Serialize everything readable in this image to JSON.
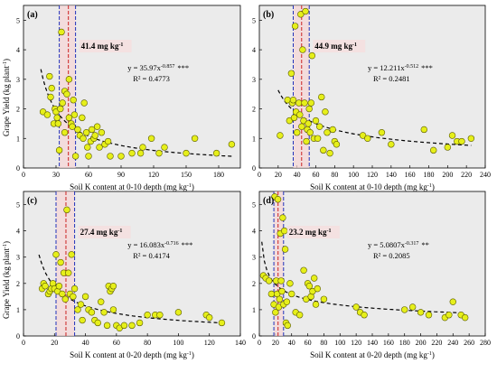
{
  "figure": {
    "y_axis_label": "Grape Yield (kg plant",
    "y_axis_label_sup": "-1",
    "y_axis_label_tail": ")"
  },
  "chart_data": [
    {
      "type": "scatter",
      "panel_label": "(a)",
      "xlabel": "Soil K content at 0-10 depth (mg kg",
      "xlabel_sup": "-1",
      "xlabel_tail": ")",
      "ylabel": "Grape Yield (kg plant-1)",
      "xlim": [
        0,
        200
      ],
      "ylim": [
        0,
        5.5
      ],
      "xticks": [
        0,
        30,
        60,
        90,
        120,
        150,
        180
      ],
      "yticks": [
        0,
        1,
        2,
        3,
        4,
        5
      ],
      "threshold_label": "41.4 mg kg",
      "threshold_label_sup": "-1",
      "threshold": 41.4,
      "ci_lines": [
        33,
        48
      ],
      "equation_text": "y = 35.97x",
      "equation_sup": "-0.857",
      "equation_sig": "***",
      "r2_text": "R² = 0.4773",
      "fit": {
        "a": 35.97,
        "b": -0.857
      },
      "points": [
        [
          18,
          1.9
        ],
        [
          22,
          1.8
        ],
        [
          24,
          3.1
        ],
        [
          25,
          2.4
        ],
        [
          26,
          2.7
        ],
        [
          28,
          1.5
        ],
        [
          29,
          2.0
        ],
        [
          30,
          1.9
        ],
        [
          31,
          1.7
        ],
        [
          32,
          1.5
        ],
        [
          33,
          0.6
        ],
        [
          34,
          2.0
        ],
        [
          35,
          4.6
        ],
        [
          36,
          2.2
        ],
        [
          38,
          1.2
        ],
        [
          38,
          2.6
        ],
        [
          40,
          2.5
        ],
        [
          42,
          3.0
        ],
        [
          42,
          1.7
        ],
        [
          44,
          1.5
        ],
        [
          45,
          1.4
        ],
        [
          46,
          2.3
        ],
        [
          47,
          1.8
        ],
        [
          48,
          0.4
        ],
        [
          50,
          1.3
        ],
        [
          52,
          1.1
        ],
        [
          54,
          1.7
        ],
        [
          55,
          1.0
        ],
        [
          56,
          2.2
        ],
        [
          58,
          1.2
        ],
        [
          59,
          0.7
        ],
        [
          60,
          0.4
        ],
        [
          62,
          0.9
        ],
        [
          63,
          1.3
        ],
        [
          65,
          1.0
        ],
        [
          66,
          1.1
        ],
        [
          68,
          1.4
        ],
        [
          70,
          0.7
        ],
        [
          72,
          1.2
        ],
        [
          75,
          0.8
        ],
        [
          78,
          0.9
        ],
        [
          80,
          0.4
        ],
        [
          90,
          0.4
        ],
        [
          100,
          0.5
        ],
        [
          108,
          0.5
        ],
        [
          110,
          0.7
        ],
        [
          118,
          1.0
        ],
        [
          125,
          0.5
        ],
        [
          130,
          0.7
        ],
        [
          150,
          0.5
        ],
        [
          158,
          1.0
        ],
        [
          178,
          0.5
        ],
        [
          192,
          0.8
        ]
      ]
    },
    {
      "type": "scatter",
      "panel_label": "(b)",
      "xlabel": "Soil K content at 0-10 depth (mg kg",
      "xlabel_sup": "-1",
      "xlabel_tail": ")",
      "ylabel": "",
      "xlim": [
        0,
        240
      ],
      "ylim": [
        0,
        5.5
      ],
      "xticks": [
        0,
        20,
        40,
        60,
        80,
        100,
        120,
        140,
        160,
        180,
        200,
        220,
        240
      ],
      "yticks": [
        0,
        1,
        2,
        3,
        4,
        5
      ],
      "threshold_label": "44.9 mg kg",
      "threshold_label_sup": "-1",
      "threshold": 44.9,
      "ci_lines": [
        36,
        53
      ],
      "equation_text": "y = 12.211x",
      "equation_sup": "-0.512",
      "equation_sig": "***",
      "r2_text": "R² = 0.2481",
      "fit": {
        "a": 12.211,
        "b": -0.512
      },
      "points": [
        [
          22,
          1.1
        ],
        [
          30,
          2.3
        ],
        [
          32,
          1.6
        ],
        [
          34,
          3.2
        ],
        [
          35,
          2.2
        ],
        [
          36,
          2.3
        ],
        [
          37,
          1.7
        ],
        [
          38,
          4.8
        ],
        [
          39,
          1.9
        ],
        [
          40,
          1.2
        ],
        [
          42,
          2.2
        ],
        [
          43,
          1.8
        ],
        [
          44,
          5.2
        ],
        [
          45,
          1.4
        ],
        [
          46,
          4.0
        ],
        [
          47,
          1.6
        ],
        [
          48,
          2.2
        ],
        [
          49,
          5.3
        ],
        [
          50,
          0.9
        ],
        [
          51,
          1.3
        ],
        [
          52,
          1.5
        ],
        [
          53,
          2.0
        ],
        [
          54,
          1.2
        ],
        [
          55,
          2.2
        ],
        [
          56,
          3.8
        ],
        [
          58,
          1.0
        ],
        [
          60,
          1.6
        ],
        [
          62,
          1.0
        ],
        [
          64,
          1.4
        ],
        [
          66,
          2.4
        ],
        [
          68,
          0.6
        ],
        [
          70,
          1.9
        ],
        [
          72,
          1.2
        ],
        [
          75,
          0.5
        ],
        [
          78,
          1.3
        ],
        [
          80,
          0.9
        ],
        [
          82,
          0.8
        ],
        [
          110,
          1.1
        ],
        [
          115,
          1.0
        ],
        [
          130,
          1.2
        ],
        [
          140,
          0.8
        ],
        [
          175,
          1.3
        ],
        [
          185,
          0.6
        ],
        [
          200,
          0.7
        ],
        [
          205,
          1.1
        ],
        [
          210,
          0.9
        ],
        [
          215,
          0.9
        ],
        [
          225,
          1.0
        ]
      ]
    },
    {
      "type": "scatter",
      "panel_label": "(c)",
      "xlabel": "Soil K content at 0-20 depth (mg kg",
      "xlabel_sup": "-1",
      "xlabel_tail": ")",
      "ylabel": "Grape Yield (kg plant-1)",
      "xlim": [
        0,
        140
      ],
      "ylim": [
        0,
        5.5
      ],
      "xticks": [
        0,
        20,
        40,
        60,
        80,
        100,
        120,
        140
      ],
      "yticks": [
        0,
        1,
        2,
        3,
        4,
        5
      ],
      "threshold_label": "27.4 mg kg",
      "threshold_label_sup": "-1",
      "threshold": 27.4,
      "ci_lines": [
        21,
        33
      ],
      "equation_text": "y = 16.083x",
      "equation_sup": "-0.716",
      "equation_sig": "***",
      "r2_text": "R² = 0.4174",
      "fit": {
        "a": 16.083,
        "b": -0.716
      },
      "points": [
        [
          12,
          1.8
        ],
        [
          13,
          2.0
        ],
        [
          14,
          1.9
        ],
        [
          16,
          1.6
        ],
        [
          17,
          1.7
        ],
        [
          18,
          1.8
        ],
        [
          19,
          2.0
        ],
        [
          20,
          1.8
        ],
        [
          21,
          3.1
        ],
        [
          22,
          1.7
        ],
        [
          23,
          1.9
        ],
        [
          24,
          2.8
        ],
        [
          25,
          1.6
        ],
        [
          26,
          2.4
        ],
        [
          27,
          1.4
        ],
        [
          28,
          4.8
        ],
        [
          29,
          2.4
        ],
        [
          30,
          1.6
        ],
        [
          31,
          3.1
        ],
        [
          32,
          1.5
        ],
        [
          33,
          1.8
        ],
        [
          35,
          1.0
        ],
        [
          37,
          1.2
        ],
        [
          38,
          0.6
        ],
        [
          40,
          1.5
        ],
        [
          42,
          1.0
        ],
        [
          44,
          0.9
        ],
        [
          46,
          0.6
        ],
        [
          48,
          0.5
        ],
        [
          50,
          1.3
        ],
        [
          52,
          0.9
        ],
        [
          54,
          0.4
        ],
        [
          55,
          1.9
        ],
        [
          56,
          1.7
        ],
        [
          57,
          1.8
        ],
        [
          58,
          1.9
        ],
        [
          58,
          1.0
        ],
        [
          60,
          0.4
        ],
        [
          62,
          0.3
        ],
        [
          65,
          0.4
        ],
        [
          70,
          0.4
        ],
        [
          75,
          0.5
        ],
        [
          80,
          0.8
        ],
        [
          85,
          0.8
        ],
        [
          88,
          0.8
        ],
        [
          100,
          0.9
        ],
        [
          118,
          0.8
        ],
        [
          120,
          0.7
        ],
        [
          128,
          0.5
        ]
      ]
    },
    {
      "type": "scatter",
      "panel_label": "(d)",
      "xlabel": "Soil K content at 0-20 depth (mg kg",
      "xlabel_sup": "-1",
      "xlabel_tail": ")",
      "ylabel": "",
      "xlim": [
        0,
        280
      ],
      "ylim": [
        0,
        5.5
      ],
      "xticks": [
        0,
        20,
        40,
        60,
        80,
        100,
        120,
        140,
        160,
        180,
        200,
        220,
        240,
        260,
        280
      ],
      "yticks": [
        0,
        1,
        2,
        3,
        4,
        5
      ],
      "threshold_label": "23.2 mg kg",
      "threshold_label_sup": "-1",
      "threshold": 23.2,
      "ci_lines": [
        18,
        30
      ],
      "equation_text": "y = 5.0807x",
      "equation_sup": "-0.317",
      "equation_sig": "**",
      "r2_text": "R² = 0.2085",
      "fit": {
        "a": 5.0807,
        "b": -0.317
      },
      "points": [
        [
          5,
          2.3
        ],
        [
          8,
          2.2
        ],
        [
          12,
          2.1
        ],
        [
          15,
          1.6
        ],
        [
          18,
          1.2
        ],
        [
          19,
          5.3
        ],
        [
          20,
          0.9
        ],
        [
          21,
          2.1
        ],
        [
          22,
          1.6
        ],
        [
          23,
          5.2
        ],
        [
          24,
          1.1
        ],
        [
          25,
          1.4
        ],
        [
          26,
          3.9
        ],
        [
          27,
          2.1
        ],
        [
          28,
          1.7
        ],
        [
          29,
          4.5
        ],
        [
          30,
          1.2
        ],
        [
          31,
          4.0
        ],
        [
          32,
          3.3
        ],
        [
          33,
          0.5
        ],
        [
          34,
          1.3
        ],
        [
          35,
          0.4
        ],
        [
          38,
          2.0
        ],
        [
          40,
          1.6
        ],
        [
          45,
          0.9
        ],
        [
          50,
          0.8
        ],
        [
          55,
          2.5
        ],
        [
          58,
          1.4
        ],
        [
          60,
          2.0
        ],
        [
          62,
          1.9
        ],
        [
          64,
          1.5
        ],
        [
          66,
          1.7
        ],
        [
          68,
          2.2
        ],
        [
          70,
          1.2
        ],
        [
          72,
          1.8
        ],
        [
          80,
          1.4
        ],
        [
          120,
          1.1
        ],
        [
          125,
          0.9
        ],
        [
          130,
          0.8
        ],
        [
          180,
          1.0
        ],
        [
          190,
          1.1
        ],
        [
          200,
          0.9
        ],
        [
          210,
          0.8
        ],
        [
          230,
          0.7
        ],
        [
          235,
          0.8
        ],
        [
          240,
          1.3
        ],
        [
          250,
          0.8
        ],
        [
          255,
          0.7
        ]
      ]
    }
  ]
}
